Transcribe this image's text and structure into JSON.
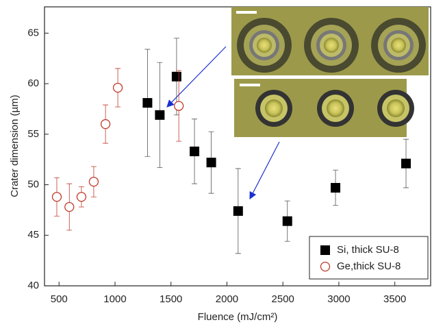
{
  "chart_data": {
    "type": "scatter",
    "x_label": "Fluence (mJ/cm²)",
    "y_label": "Crater dimension (µm)",
    "xlim": [
      370,
      3820
    ],
    "ylim": [
      40,
      67.6
    ],
    "xticks": [
      500,
      1000,
      1500,
      2000,
      2500,
      3000,
      3500
    ],
    "yticks": [
      40,
      45,
      50,
      55,
      60,
      65
    ],
    "legend": "lower right",
    "series": [
      {
        "name": "Si, thick SU-8",
        "color": "#000000",
        "marker": "square",
        "x": [
          1290,
          1400,
          1550,
          1710,
          1860,
          2100,
          2540,
          2970,
          3600
        ],
        "values": [
          58.1,
          56.9,
          60.7,
          53.3,
          52.2,
          47.4,
          46.4,
          49.7,
          52.1
        ],
        "errors": [
          5.3,
          5.2,
          3.8,
          3.2,
          3.05,
          4.2,
          2.0,
          1.75,
          2.4
        ]
      },
      {
        "name": "Ge,thick SU-8",
        "color": "#c0392b",
        "marker": "circle",
        "x": [
          480,
          592,
          700,
          810,
          915,
          1025,
          1570
        ],
        "values": [
          48.8,
          47.8,
          48.8,
          50.3,
          56.0,
          59.6,
          57.8
        ],
        "errors": [
          1.9,
          2.3,
          1.0,
          1.5,
          1.9,
          1.9,
          3.5
        ]
      }
    ]
  }
}
